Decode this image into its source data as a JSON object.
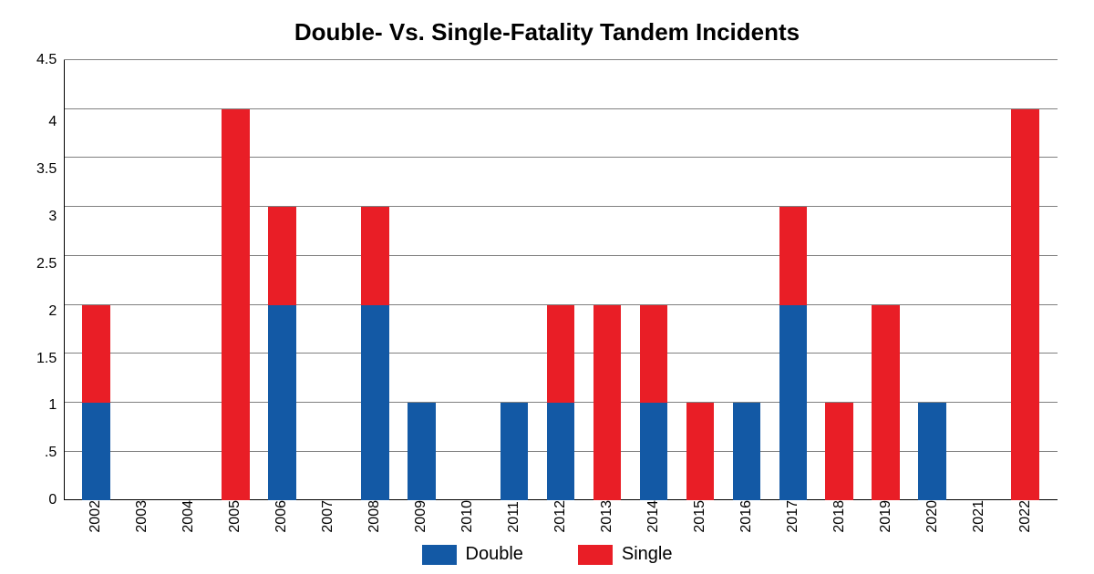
{
  "chart": {
    "type": "stacked-bar",
    "title": "Double- Vs. Single-Fatality Tandem Incidents",
    "title_fontsize": 26,
    "background_color": "#ffffff",
    "grid_color": "#808080",
    "axis_color": "#000000",
    "ylim": [
      0,
      4.5
    ],
    "ytick_labels": [
      "4.5",
      "4",
      "3.5",
      "3",
      "2.5",
      "2",
      "1.5",
      "1",
      ".5",
      "0"
    ],
    "ytick_values": [
      4.5,
      4,
      3.5,
      3,
      2.5,
      2,
      1.5,
      1,
      0.5,
      0
    ],
    "tick_fontsize": 16,
    "bar_width_ratio": 0.6,
    "categories": [
      "2002",
      "2003",
      "2004",
      "2005",
      "2006",
      "2007",
      "2008",
      "2009",
      "2010",
      "2011",
      "2012",
      "2013",
      "2014",
      "2015",
      "2016",
      "2017",
      "2018",
      "2019",
      "2020",
      "2021",
      "2022"
    ],
    "series": [
      {
        "name": "Double",
        "color": "#1359a5",
        "values": [
          1,
          0,
          0,
          0,
          2,
          0,
          2,
          1,
          0,
          1,
          1,
          0,
          1,
          0,
          1,
          2,
          0,
          0,
          1,
          0,
          0
        ]
      },
      {
        "name": "Single",
        "color": "#e91e26",
        "values": [
          1,
          0,
          0,
          4,
          1,
          0,
          1,
          0,
          0,
          0,
          1,
          2,
          1,
          1,
          0,
          1,
          1,
          2,
          0,
          0,
          4
        ]
      }
    ],
    "x_label_fontsize": 16,
    "legend_fontsize": 20
  }
}
